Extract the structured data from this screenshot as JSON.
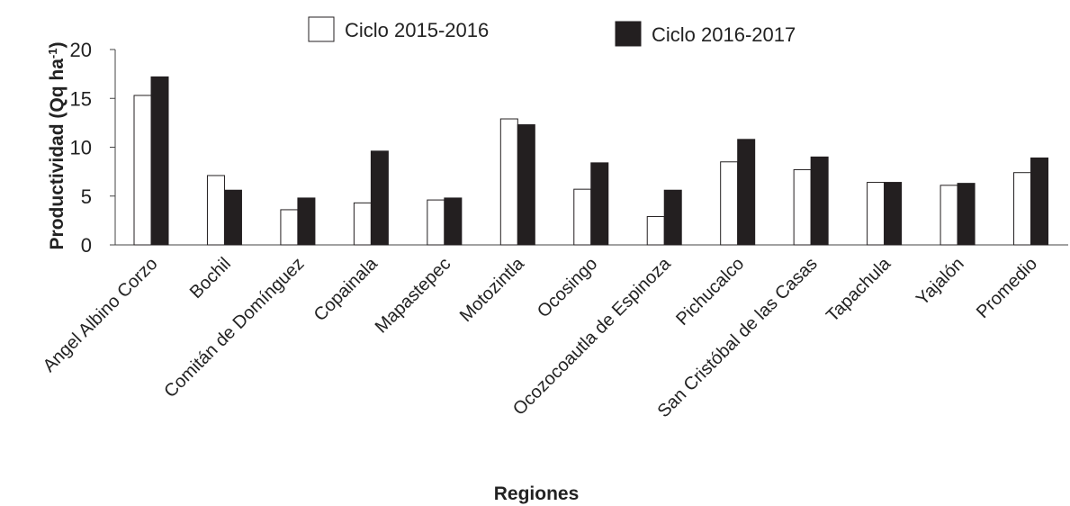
{
  "chart_data": {
    "type": "bar",
    "ylabel": "Productividad  (Qq ha",
    "ylabel_superscript": "-1",
    "ylabel_close": ")",
    "xlabel": "Regiones",
    "ylim": [
      0,
      20
    ],
    "yticks": [
      "0",
      "5",
      "10",
      "15",
      "20"
    ],
    "grid": false,
    "legend_position": "top",
    "categories": [
      "Angel Albino Corzo",
      "Bochil",
      "Comitán de Domínguez",
      "Copainala",
      "Mapastepec",
      "Motozintla",
      "Ocosingo",
      "Ocozocoautla de Espinoza",
      "Pichucalco",
      "San Cristóbal de las Casas",
      "Tapachula",
      "Yajalón",
      "Promedio"
    ],
    "series": [
      {
        "name": "Ciclo 2015-2016",
        "color": "#ffffff",
        "values": [
          15.3,
          7.1,
          3.6,
          4.3,
          4.6,
          12.9,
          5.7,
          2.9,
          8.5,
          7.7,
          6.4,
          6.1,
          7.4
        ]
      },
      {
        "name": "Ciclo 2016-2017",
        "color": "#231f20",
        "values": [
          17.2,
          5.6,
          4.8,
          9.6,
          4.8,
          12.3,
          8.4,
          5.6,
          10.8,
          9.0,
          6.4,
          6.3,
          8.9
        ]
      }
    ]
  }
}
